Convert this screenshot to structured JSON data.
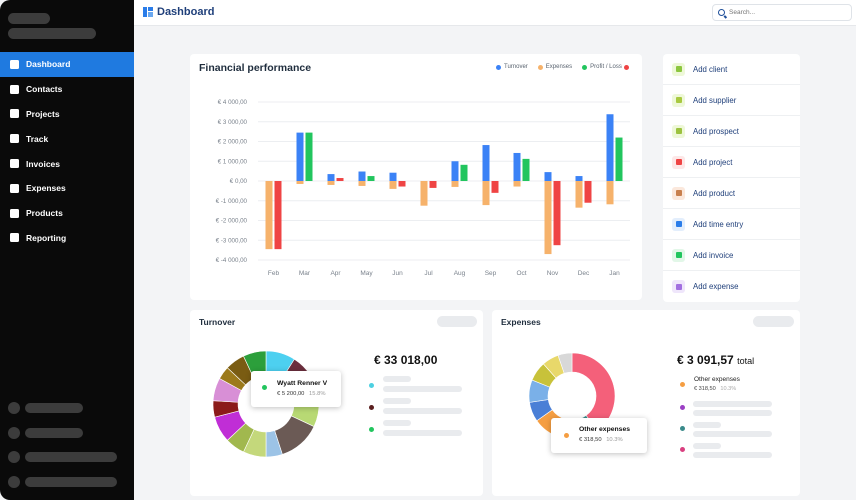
{
  "header": {
    "title": "Dashboard",
    "search_placeholder": "Search..."
  },
  "sidebar": {
    "items": [
      {
        "label": "Dashboard",
        "icon": "dashboard-icon",
        "active": true
      },
      {
        "label": "Contacts",
        "icon": "contacts-icon"
      },
      {
        "label": "Projects",
        "icon": "projects-icon"
      },
      {
        "label": "Track",
        "icon": "track-icon"
      },
      {
        "label": "Invoices",
        "icon": "invoices-icon"
      },
      {
        "label": "Expenses",
        "icon": "expenses-icon"
      },
      {
        "label": "Products",
        "icon": "products-icon"
      },
      {
        "label": "Reporting",
        "icon": "reporting-icon"
      }
    ]
  },
  "financial": {
    "title": "Financial performance",
    "legend": [
      {
        "label": "Turnover",
        "color": "#3b82f6"
      },
      {
        "label": "Expenses",
        "color": "#f6b26b"
      },
      {
        "label": "Profit / Loss",
        "color": "#22c55e"
      },
      {
        "label": "",
        "color": "#ef4444"
      }
    ]
  },
  "chart_data": {
    "type": "bar",
    "categories": [
      "Feb",
      "Mar",
      "Apr",
      "May",
      "Jun",
      "Jul",
      "Aug",
      "Sep",
      "Oct",
      "Nov",
      "Dec",
      "Jan"
    ],
    "yticks": [
      "€ 4 000,00",
      "€ 3 000,00",
      "€ 2 000,00",
      "€ 1 000,00",
      "€ 0,00",
      "€ -1 000,00",
      "€ -2 000,00",
      "€ -3 000,00",
      "€ -4 000,00"
    ],
    "ylim": [
      -4000,
      4000
    ],
    "grid": true,
    "series": [
      {
        "name": "Turnover",
        "color": "#3b82f6",
        "values": [
          0,
          2450,
          350,
          480,
          420,
          0,
          1000,
          1820,
          1420,
          450,
          250,
          3380
        ]
      },
      {
        "name": "Expenses",
        "color": "#f6b26b",
        "values": [
          -3450,
          -150,
          -200,
          -250,
          -400,
          -1250,
          -300,
          -1220,
          -280,
          -3700,
          -1350,
          -1180
        ]
      },
      {
        "name": "Profit / Loss",
        "color": "#22c55e",
        "values": [
          0,
          2450,
          0,
          250,
          0,
          0,
          820,
          0,
          1120,
          0,
          0,
          2200
        ]
      },
      {
        "name": "",
        "color": "#ef4444",
        "values": [
          -3450,
          0,
          150,
          0,
          -280,
          -350,
          0,
          -600,
          0,
          -3250,
          -1100,
          0
        ]
      }
    ]
  },
  "quick_actions": [
    {
      "label": "Add client",
      "icon": "users-icon",
      "bg": "#eef8d8",
      "fg": "#8cc63f"
    },
    {
      "label": "Add supplier",
      "icon": "truck-icon",
      "bg": "#eef8d8",
      "fg": "#a8c93f"
    },
    {
      "label": "Add prospect",
      "icon": "id-card-icon",
      "bg": "#eef8d8",
      "fg": "#9cc23f"
    },
    {
      "label": "Add project",
      "icon": "briefcase-icon",
      "bg": "#fde7e7",
      "fg": "#ef4444"
    },
    {
      "label": "Add product",
      "icon": "box-icon",
      "bg": "#fbe8dc",
      "fg": "#c8804e"
    },
    {
      "label": "Add time entry",
      "icon": "stopwatch-icon",
      "bg": "#e3eefc",
      "fg": "#2b7de9"
    },
    {
      "label": "Add invoice",
      "icon": "invoice-icon",
      "bg": "#e2f7e8",
      "fg": "#22c55e"
    },
    {
      "label": "Add expense",
      "icon": "receipt-icon",
      "bg": "#efe6fb",
      "fg": "#a26fe0"
    }
  ],
  "turnover": {
    "title": "Turnover",
    "total": "€ 33 018,00",
    "tooltip": {
      "name": "Wyatt Renner V",
      "value": "€ 5 200,00",
      "percent": "15.8%",
      "color": "#22c55e"
    },
    "donut": [
      {
        "value": 9,
        "color": "#4dd0f0"
      },
      {
        "value": 7,
        "color": "#6b2e3d"
      },
      {
        "value": 8,
        "color": "#7ac943"
      },
      {
        "value": 8,
        "color": "#b8d974"
      },
      {
        "value": 13,
        "color": "#6b5a55"
      },
      {
        "value": 5,
        "color": "#9cc3e6"
      },
      {
        "value": 7,
        "color": "#c4d87b"
      },
      {
        "value": 6,
        "color": "#a1b84e"
      },
      {
        "value": 8,
        "color": "#c02ed6"
      },
      {
        "value": 5,
        "color": "#8b1a1a"
      },
      {
        "value": 7,
        "color": "#d88fd6"
      },
      {
        "value": 4,
        "color": "#9c7a1b"
      },
      {
        "value": 6,
        "color": "#7a5c12"
      },
      {
        "value": 7,
        "color": "#2c9f3b"
      }
    ],
    "legend_dots": [
      "#4dd0e1",
      "#5a1f1f",
      "#22c55e"
    ]
  },
  "expenses": {
    "title": "Expenses",
    "total": "€ 3 091,57",
    "total_suffix": "total",
    "legend_first": {
      "name": "Other expenses",
      "value": "€ 318,50",
      "percent": "10.3%"
    },
    "tooltip": {
      "name": "Other expenses",
      "value": "€ 318,50",
      "percent": "10.3%",
      "color": "#f59e42"
    },
    "donut": [
      {
        "value": 38,
        "color": "#f4607a"
      },
      {
        "value": 4,
        "color": "#3a8a8a"
      },
      {
        "value": 10,
        "color": "#c8a0e8"
      },
      {
        "value": 10,
        "color": "#f59e42"
      },
      {
        "value": 7,
        "color": "#4a7fd6"
      },
      {
        "value": 8,
        "color": "#7ab0e8"
      },
      {
        "value": 7,
        "color": "#c8c23a"
      },
      {
        "value": 6,
        "color": "#e8d86a"
      },
      {
        "value": 5,
        "color": "#d8d8d8"
      }
    ],
    "legend_dots": [
      "#f59e42",
      "#9b3fc4",
      "#3a8a8a",
      "#d94080"
    ]
  }
}
